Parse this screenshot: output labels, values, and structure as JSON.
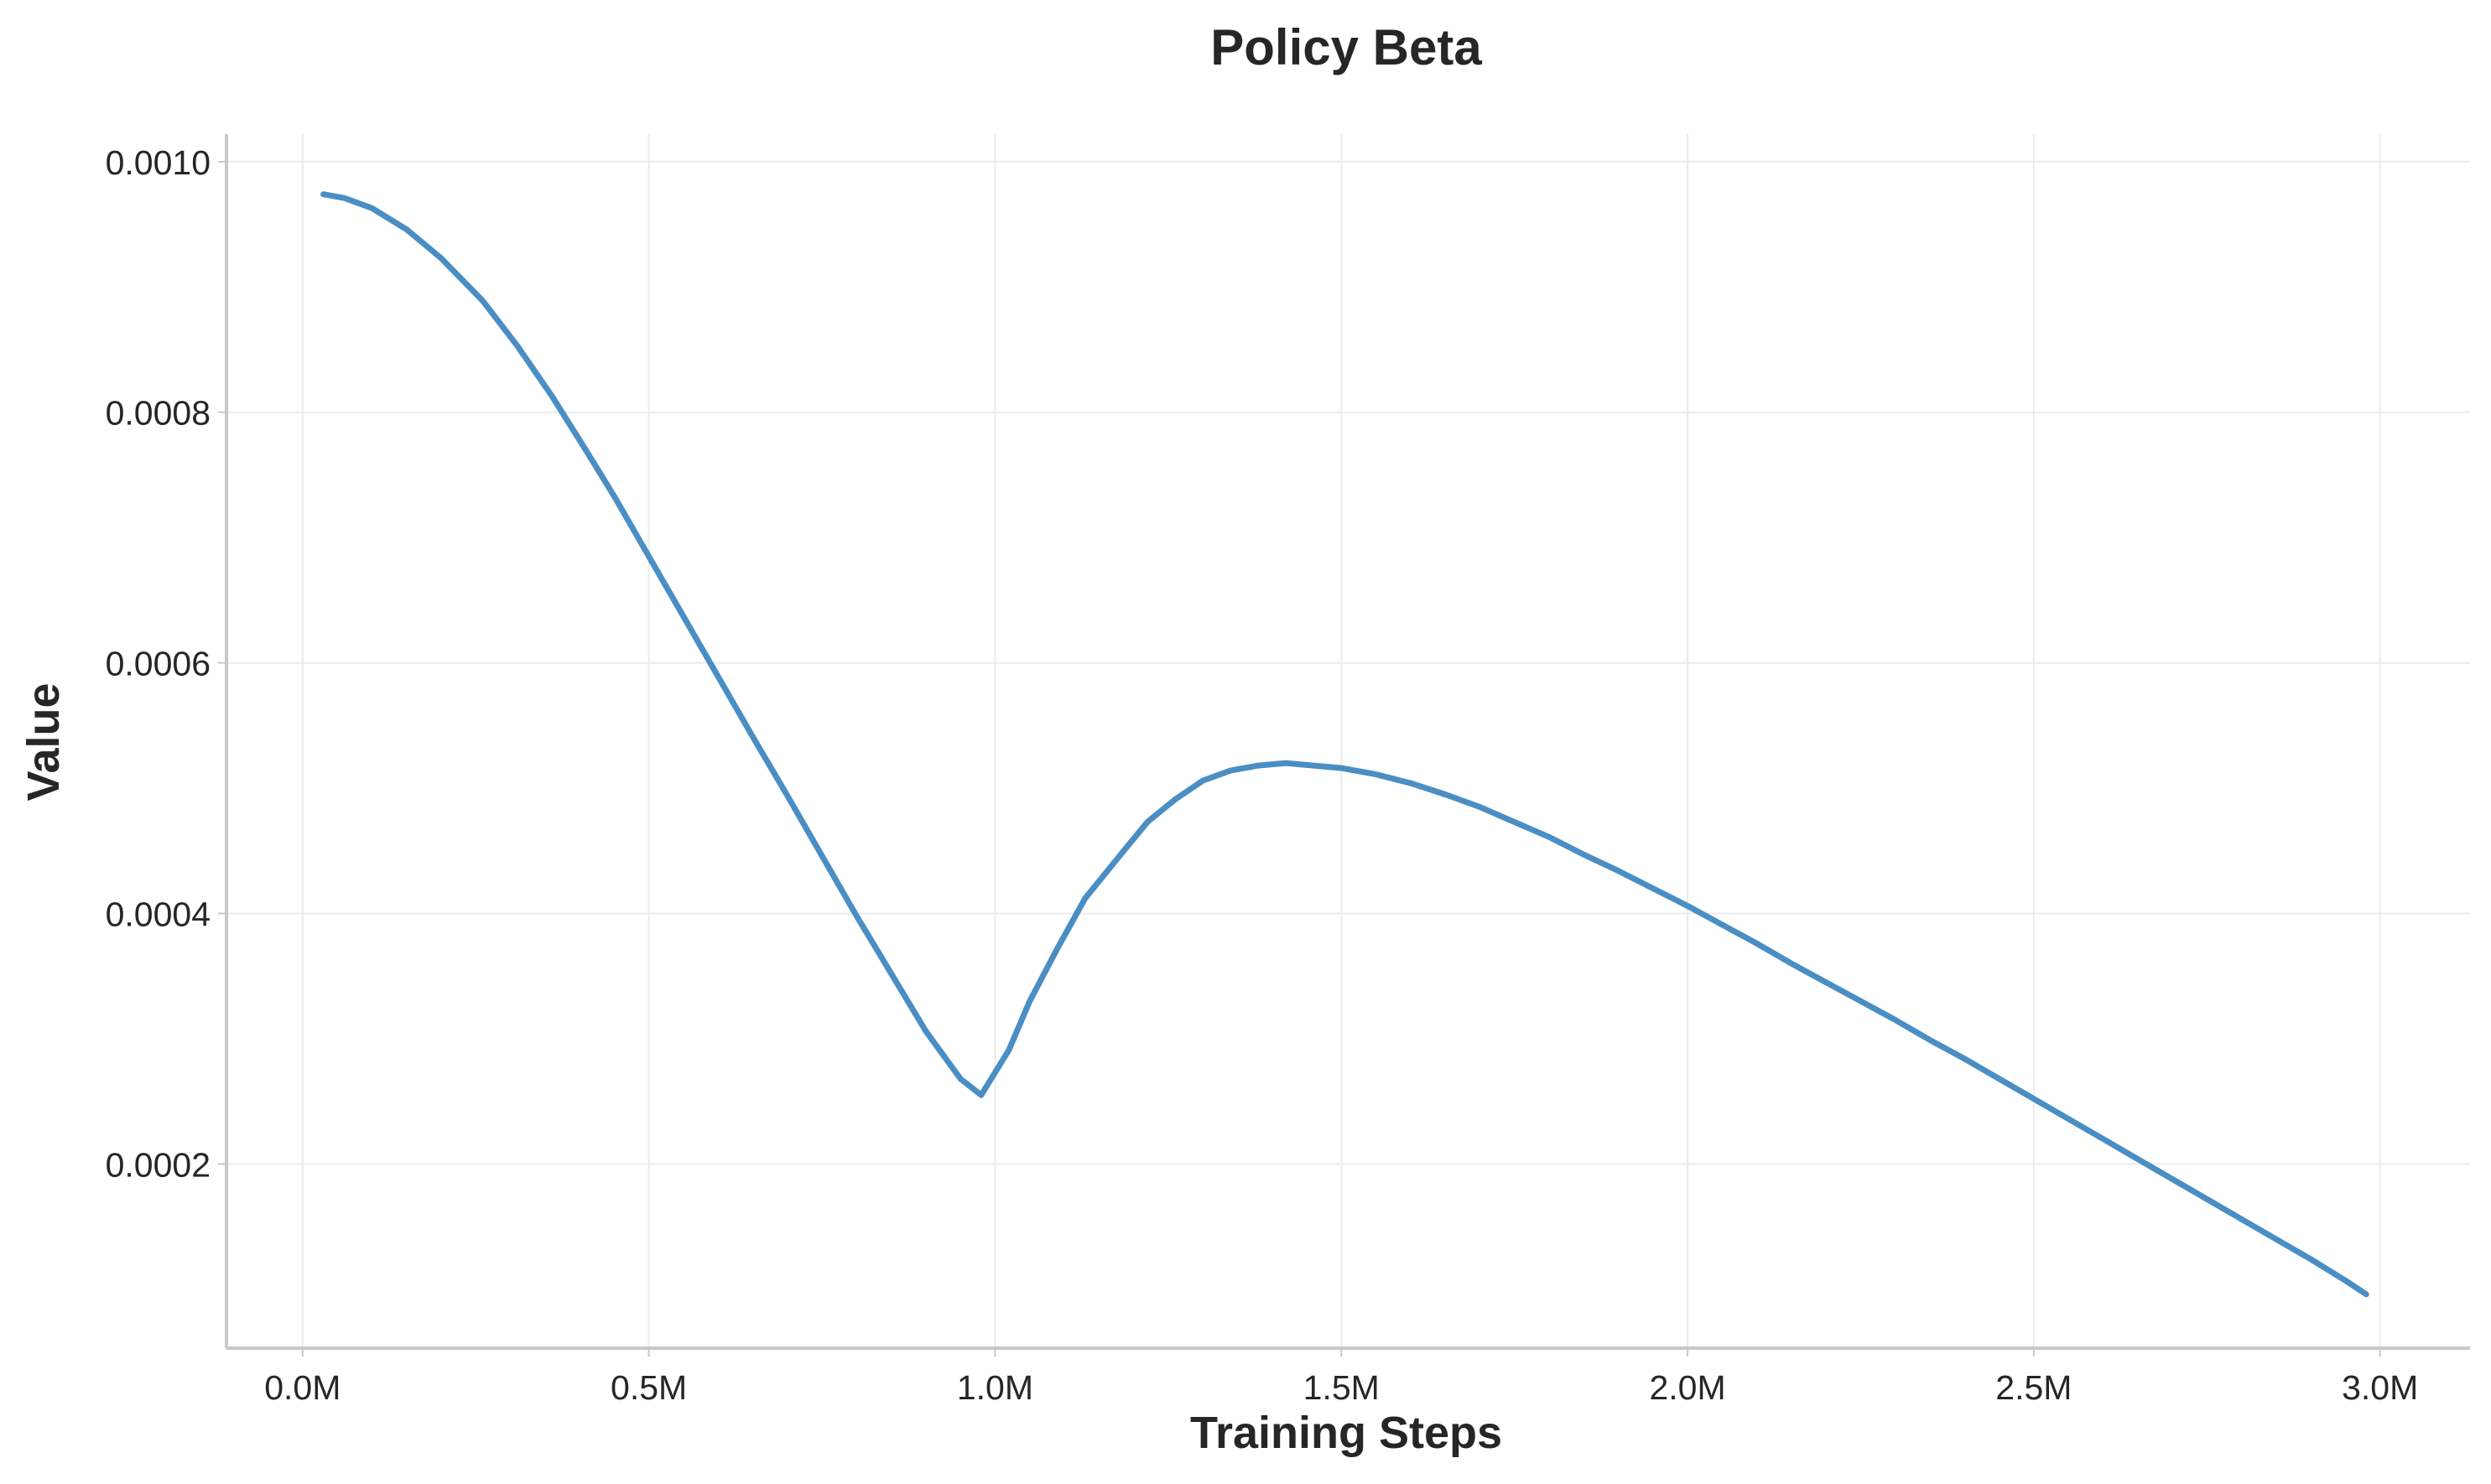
{
  "chart_data": {
    "type": "line",
    "title": "Policy Beta",
    "xlabel": "Training Steps",
    "ylabel": "Value",
    "xlim": [
      -0.11,
      3.13
    ],
    "ylim": [
      5.3e-05,
      0.001022
    ],
    "x_ticks": [
      0,
      0.5,
      1.0,
      1.5,
      2.0,
      2.5,
      3.0
    ],
    "x_tick_labels": [
      "0.0M",
      "0.5M",
      "1.0M",
      "1.5M",
      "2.0M",
      "2.5M",
      "3.0M"
    ],
    "y_ticks": [
      0.0002,
      0.0004,
      0.0006,
      0.0008,
      0.001
    ],
    "y_tick_labels": [
      "0.0002",
      "0.0004",
      "0.0006",
      "0.0008",
      "0.0010"
    ],
    "grid": true,
    "legend": "none",
    "series": [
      {
        "color": "#4a8ec4",
        "x": [
          0.03,
          0.06,
          0.1,
          0.15,
          0.2,
          0.26,
          0.31,
          0.36,
          0.41,
          0.45,
          0.5,
          0.55,
          0.6,
          0.65,
          0.7,
          0.75,
          0.8,
          0.85,
          0.9,
          0.95,
          0.98,
          1.02,
          1.05,
          1.09,
          1.13,
          1.18,
          1.22,
          1.26,
          1.3,
          1.34,
          1.38,
          1.42,
          1.46,
          1.5,
          1.55,
          1.6,
          1.65,
          1.7,
          1.75,
          1.8,
          1.85,
          1.9,
          1.95,
          2.0,
          2.05,
          2.1,
          2.15,
          2.2,
          2.25,
          2.3,
          2.35,
          2.4,
          2.45,
          2.5,
          2.55,
          2.6,
          2.65,
          2.7,
          2.75,
          2.8,
          2.85,
          2.9,
          2.95,
          2.98
        ],
        "y": [
          0.000974,
          0.000971,
          0.000963,
          0.000946,
          0.000923,
          0.000889,
          0.000853,
          0.000813,
          0.000769,
          0.000733,
          0.000685,
          0.000637,
          0.000589,
          0.000541,
          0.000494,
          0.000446,
          0.000398,
          0.000352,
          0.000306,
          0.000268,
          0.000255,
          0.000291,
          0.00033,
          0.000372,
          0.000412,
          0.000446,
          0.000473,
          0.000491,
          0.000506,
          0.000514,
          0.000518,
          0.00052,
          0.000518,
          0.000516,
          0.000511,
          0.000504,
          0.000495,
          0.000485,
          0.000473,
          0.000461,
          0.000447,
          0.000434,
          0.00042,
          0.000406,
          0.000391,
          0.000376,
          0.00036,
          0.000345,
          0.00033,
          0.000315,
          0.000299,
          0.000284,
          0.000268,
          0.000252,
          0.000236,
          0.00022,
          0.000204,
          0.000188,
          0.000172,
          0.000156,
          0.00014,
          0.000124,
          0.000107,
          9.6e-05
        ]
      }
    ]
  }
}
